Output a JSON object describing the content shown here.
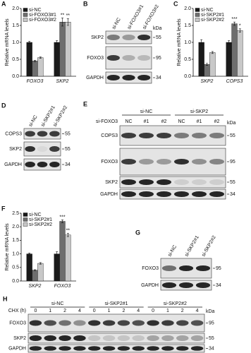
{
  "panels": [
    {
      "letter": "A",
      "chart": {
        "type": "bar",
        "y_label": "Relative mRNA levels",
        "categories": [
          "FOXO3",
          "SKP2"
        ],
        "series": [
          {
            "name": "si-NC",
            "color": "#1a1a1a",
            "values": [
              1.0,
              1.0
            ],
            "errors": [
              0.03,
              0.05
            ],
            "significance": [
              null,
              null
            ]
          },
          {
            "name": "si-FOXO3#1",
            "color": "#6e6e6e",
            "values": [
              0.45,
              1.6
            ],
            "errors": [
              0.02,
              0.12
            ],
            "significance": [
              null,
              "**"
            ]
          },
          {
            "name": "si-FOXO3#2",
            "color": "#c8c8c8",
            "values": [
              0.55,
              1.6
            ],
            "errors": [
              0.02,
              0.1
            ],
            "significance": [
              null,
              "**"
            ]
          }
        ],
        "ylim": [
          0,
          2
        ],
        "yticks": [
          {
            "value": 0,
            "label": "0.0"
          },
          {
            "value": 0.5,
            "label": "0.5"
          },
          {
            "value": 1,
            "label": "1.0"
          },
          {
            "value": 1.5,
            "label": "1.5"
          },
          {
            "value": 2,
            "label": "2.0"
          }
        ]
      }
    },
    {
      "letter": "B",
      "blot": {
        "kda": "kDa",
        "lanes": [
          "si-NC",
          "si-FOXO3#1",
          "si-FOXO3#2"
        ],
        "rows": [
          {
            "name": "SKP2",
            "marker": 55
          },
          {
            "name": "FOXO3",
            "marker": 95
          },
          {
            "name": "GAPDH",
            "marker": 34
          }
        ]
      }
    },
    {
      "letter": "C",
      "chart": {
        "type": "bar",
        "y_label": "Relative mRNA levels",
        "categories": [
          "SKP2",
          "COPS3"
        ],
        "series": [
          {
            "name": "si-NC",
            "color": "#1a1a1a",
            "values": [
              1.0,
              1.0
            ],
            "errors": [
              0.08,
              0.05
            ],
            "significance": [
              null,
              null
            ]
          },
          {
            "name": "si-SKP2#1",
            "color": "#6e6e6e",
            "values": [
              0.35,
              1.55
            ],
            "errors": [
              0.03,
              0.05
            ],
            "significance": [
              null,
              "***"
            ]
          },
          {
            "name": "si-SKP2#2",
            "color": "#c8c8c8",
            "values": [
              0.7,
              1.35
            ],
            "errors": [
              0.03,
              0.05
            ],
            "significance": [
              null,
              "*"
            ]
          }
        ],
        "ylim": [
          0,
          2
        ],
        "yticks": [
          {
            "value": 0,
            "label": "0.0"
          },
          {
            "value": 0.5,
            "label": "0.5"
          },
          {
            "value": 1,
            "label": "1.0"
          },
          {
            "value": 1.5,
            "label": "1.5"
          },
          {
            "value": 2,
            "label": "2.0"
          }
        ]
      }
    },
    {
      "letter": "D",
      "blot": {
        "lanes": [
          "si-NC",
          "si-SKP2#1",
          "si-SKP2#2"
        ],
        "rows": [
          {
            "name": "COPS3",
            "marker": 55
          },
          {
            "name": "SKP2",
            "marker": 55
          },
          {
            "name": "GAPDH",
            "marker": 34
          }
        ]
      }
    },
    {
      "letter": "E",
      "blot": {
        "kda": "kDa",
        "groups": [
          "si-NC",
          "si-SKP2"
        ],
        "lane_prefix": "si-FOXO3",
        "lanes": [
          "NC",
          "#1",
          "#2",
          "NC",
          "#1",
          "#2"
        ],
        "rows": [
          {
            "name": "COPS3",
            "marker": 55
          },
          {
            "name": "FOXO3",
            "marker": 95
          },
          {
            "name": "SKP2",
            "marker": 55
          },
          {
            "name": "GAPDH",
            "marker": 34
          }
        ]
      }
    },
    {
      "letter": "F",
      "chart": {
        "type": "bar",
        "y_label": "Relative mRNA levels",
        "categories": [
          "SKP2",
          "FOXO3"
        ],
        "series": [
          {
            "name": "si-NC",
            "color": "#1a1a1a",
            "values": [
              1.0,
              1.0
            ],
            "errors": [
              0.03,
              0.08
            ],
            "significance": [
              null,
              null
            ]
          },
          {
            "name": "si-SKP2#1",
            "color": "#6e6e6e",
            "values": [
              0.4,
              2.2
            ],
            "errors": [
              0.02,
              0.05
            ],
            "significance": [
              null,
              "***"
            ]
          },
          {
            "name": "si-SKP2#2",
            "color": "#c8c8c8",
            "values": [
              0.65,
              1.7
            ],
            "errors": [
              0.03,
              0.06
            ],
            "significance": [
              null,
              "**"
            ]
          }
        ],
        "ylim": [
          0,
          2.5
        ],
        "yticks": [
          {
            "value": 0,
            "label": "0.0"
          },
          {
            "value": 0.5,
            "label": "0.5"
          },
          {
            "value": 1,
            "label": "1.0"
          },
          {
            "value": 1.5,
            "label": "1.5"
          },
          {
            "value": 2,
            "label": "2.0"
          },
          {
            "value": 2.5,
            "label": "2.5"
          }
        ]
      }
    },
    {
      "letter": "G",
      "blot": {
        "lanes": [
          "si-NC",
          "si-SKP2#1",
          "si-SKP2#2"
        ],
        "rows": [
          {
            "name": "FOXO3",
            "marker": 95
          },
          {
            "name": "GAPDH",
            "marker": 34
          }
        ]
      }
    },
    {
      "letter": "H",
      "blot": {
        "kda": "kDa",
        "groups": [
          "si-NC",
          "si-SKP2#1",
          "si-SKP2#2"
        ],
        "lane_prefix": "CHX (h)",
        "lanes": [
          "0",
          "1",
          "2",
          "4",
          "0",
          "1",
          "2",
          "4",
          "0",
          "1",
          "2",
          "4"
        ],
        "rows": [
          {
            "name": "FOXO3",
            "marker": 95
          },
          {
            "name": "SKP2",
            "marker": 55
          },
          {
            "name": "GAPDH",
            "marker": 34
          }
        ]
      }
    }
  ]
}
